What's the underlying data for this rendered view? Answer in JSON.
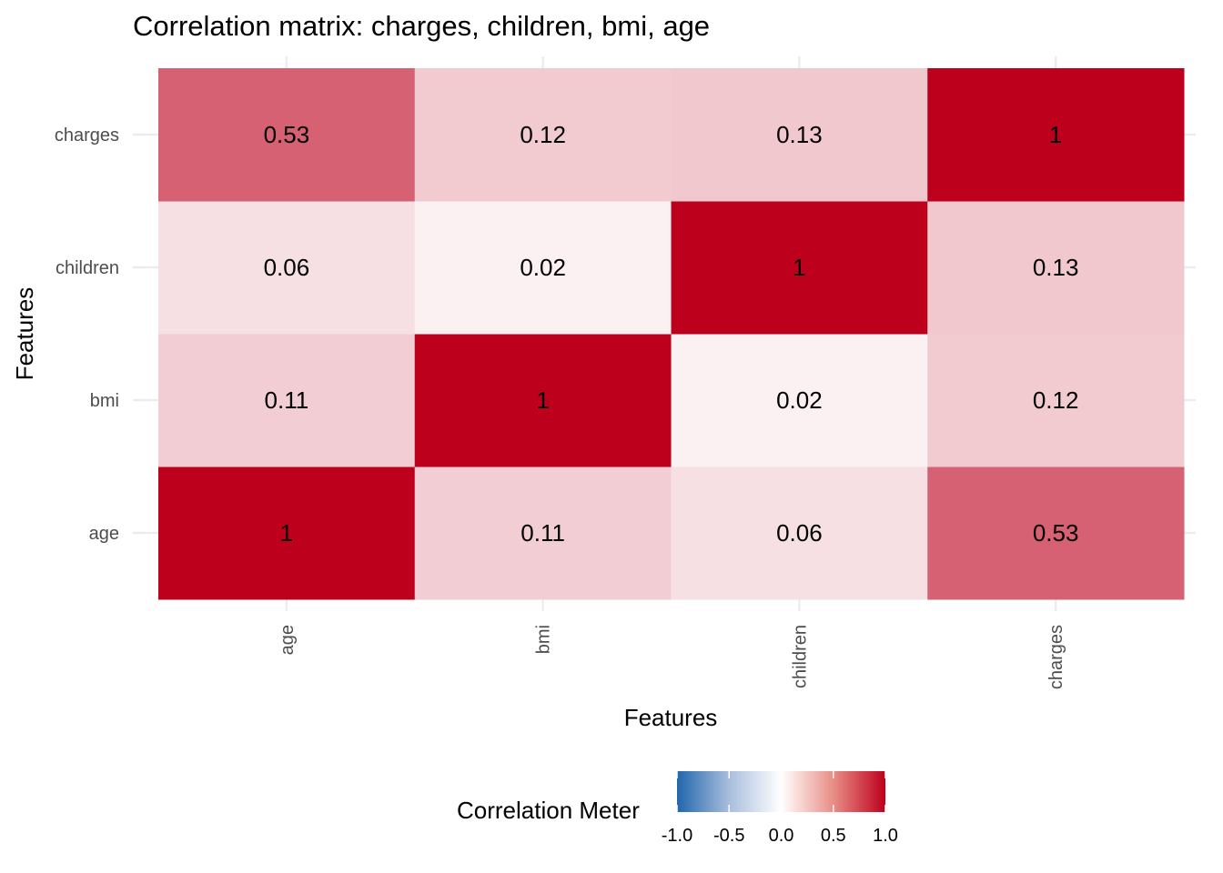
{
  "chart_data": {
    "type": "heatmap",
    "title": "Correlation matrix: charges, children, bmi, age",
    "xlabel": "Features",
    "ylabel": "Features",
    "x_categories": [
      "age",
      "bmi",
      "children",
      "charges"
    ],
    "y_categories": [
      "age",
      "bmi",
      "children",
      "charges"
    ],
    "values": [
      [
        1,
        0.11,
        0.06,
        0.53
      ],
      [
        0.11,
        1,
        0.02,
        0.12
      ],
      [
        0.06,
        0.02,
        1,
        0.13
      ],
      [
        0.53,
        0.12,
        0.13,
        1
      ]
    ],
    "cell_labels": [
      [
        "1",
        "0.11",
        "0.06",
        "0.53"
      ],
      [
        "0.11",
        "1",
        "0.02",
        "0.12"
      ],
      [
        "0.06",
        "0.02",
        "1",
        "0.13"
      ],
      [
        "0.53",
        "0.12",
        "0.13",
        "1"
      ]
    ],
    "legend": {
      "title": "Correlation Meter",
      "placement": "bottom",
      "range": [
        -1,
        1
      ],
      "ticks": [
        -1.0,
        -0.5,
        0.0,
        0.5,
        1.0
      ],
      "tick_labels": [
        "-1.0",
        "-0.5",
        "0.0",
        "0.5",
        "1.0"
      ],
      "colors": {
        "low": "#2166AC",
        "mid": "#FFFFFF",
        "high": "#BD001C"
      }
    },
    "grid": true,
    "x_tick_rotation": "vertical"
  }
}
